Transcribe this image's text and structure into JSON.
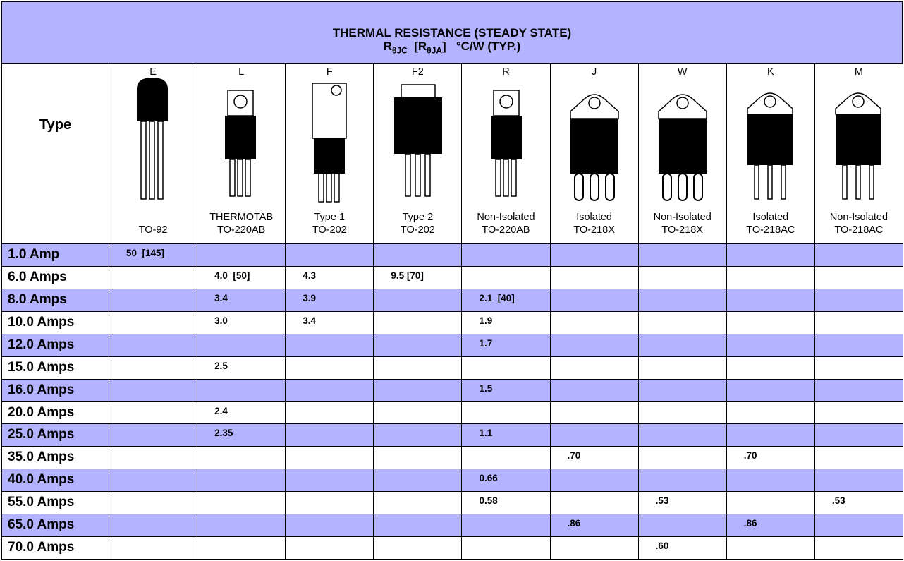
{
  "title": "THERMAL RESISTANCE (STEADY STATE)",
  "subtitle": [
    "R",
    "θJC",
    "  [R",
    "θJA",
    "]   °C/W (TYP.)"
  ],
  "type_label": "Type",
  "columns": [
    {
      "code": "E",
      "name": [
        "TO-92"
      ]
    },
    {
      "code": "L",
      "name": [
        "THERMOTAB",
        "TO-220AB"
      ]
    },
    {
      "code": "F",
      "name": [
        "Type 1",
        "TO-202"
      ]
    },
    {
      "code": "F2",
      "name": [
        "Type 2",
        "TO-202"
      ]
    },
    {
      "code": "R",
      "name": [
        "Non-Isolated",
        "TO-220AB"
      ]
    },
    {
      "code": "J",
      "name": [
        "Isolated",
        "TO-218X"
      ]
    },
    {
      "code": "W",
      "name": [
        "Non-Isolated",
        "TO-218X"
      ]
    },
    {
      "code": "K",
      "name": [
        "Isolated",
        "TO-218AC"
      ]
    },
    {
      "code": "M",
      "name": [
        "Non-Isolated",
        "TO-218AC"
      ]
    }
  ],
  "rows": [
    {
      "label": "1.0 Amp",
      "cells": [
        "50  [145]",
        null,
        null,
        null,
        null,
        null,
        null,
        null,
        null
      ]
    },
    {
      "label": "6.0 Amps",
      "cells": [
        null,
        "4.0  [50]",
        "4.3",
        "9.5 [70]",
        null,
        null,
        null,
        null,
        null
      ]
    },
    {
      "label": "8.0 Amps",
      "cells": [
        null,
        "3.4",
        "3.9",
        null,
        "2.1  [40]",
        null,
        null,
        null,
        null
      ]
    },
    {
      "label": "10.0 Amps",
      "cells": [
        null,
        "3.0",
        "3.4",
        null,
        "1.9",
        null,
        null,
        null,
        null
      ]
    },
    {
      "label": "12.0 Amps",
      "cells": [
        null,
        null,
        null,
        null,
        "1.7",
        null,
        null,
        null,
        null
      ]
    },
    {
      "label": "15.0 Amps",
      "cells": [
        null,
        "2.5",
        null,
        null,
        null,
        null,
        null,
        null,
        null
      ]
    },
    {
      "label": "16.0 Amps",
      "cells": [
        null,
        null,
        null,
        null,
        "1.5",
        null,
        null,
        null,
        null
      ]
    },
    {
      "label": "20.0 Amps",
      "cells": [
        null,
        "2.4",
        null,
        null,
        null,
        null,
        null,
        null,
        null
      ]
    },
    {
      "label": "25.0 Amps",
      "cells": [
        null,
        "2.35",
        null,
        null,
        "1.1",
        null,
        null,
        null,
        null
      ]
    },
    {
      "label": "35.0 Amps",
      "cells": [
        null,
        null,
        null,
        null,
        null,
        ".70",
        null,
        ".70",
        null
      ]
    },
    {
      "label": "40.0 Amps",
      "cells": [
        null,
        null,
        null,
        null,
        "0.66",
        null,
        null,
        null,
        null
      ]
    },
    {
      "label": "55.0 Amps",
      "cells": [
        null,
        null,
        null,
        null,
        "0.58",
        null,
        ".53",
        null,
        ".53"
      ]
    },
    {
      "label": "65.0 Amps",
      "cells": [
        null,
        null,
        null,
        null,
        null,
        ".86",
        null,
        ".86",
        null
      ]
    },
    {
      "label": "70.0 Amps",
      "cells": [
        null,
        null,
        null,
        null,
        null,
        null,
        ".60",
        null,
        null
      ]
    }
  ]
}
